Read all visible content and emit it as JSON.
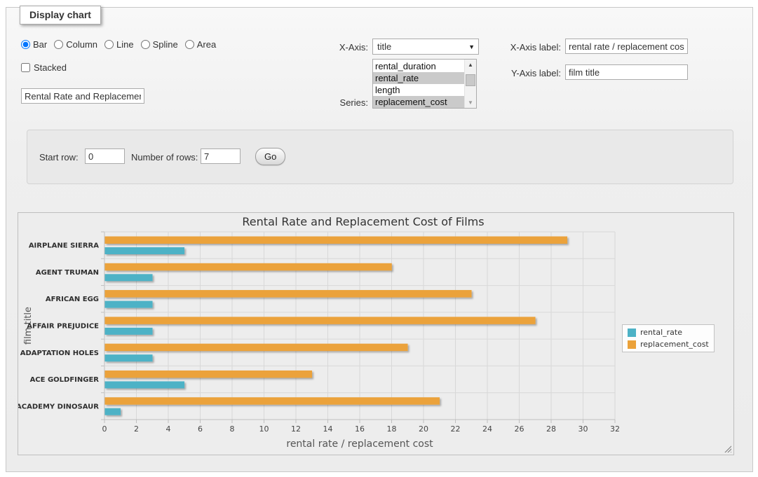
{
  "panel_title": "Display chart",
  "icons": {
    "select_arrow": "▼",
    "scroll_up_arrow": "▲",
    "scroll_down_arrow": "▼"
  },
  "form": {
    "chart_type": {
      "options": [
        {
          "label": "Bar",
          "selected": true
        },
        {
          "label": "Column",
          "selected": false
        },
        {
          "label": "Line",
          "selected": false
        },
        {
          "label": "Spline",
          "selected": false
        },
        {
          "label": "Area",
          "selected": false
        }
      ]
    },
    "stacked": {
      "label": "Stacked",
      "checked": false
    },
    "title_input": {
      "value": "Rental Rate and Replacement Cost of Films"
    },
    "x_axis": {
      "label": "X-Axis:",
      "selected": "title"
    },
    "series": {
      "label": "Series:",
      "options": [
        {
          "label": "rental_duration",
          "selected": false
        },
        {
          "label": "rental_rate",
          "selected": true
        },
        {
          "label": "length",
          "selected": false
        },
        {
          "label": "replacement_cost",
          "selected": true
        }
      ]
    },
    "x_axis_label": {
      "label": "X-Axis label:",
      "value": "rental rate / replacement cost"
    },
    "y_axis_label": {
      "label": "Y-Axis label:",
      "value": "film title"
    },
    "rows": {
      "start_label": "Start row:",
      "start_value": "0",
      "count_label": "Number of rows:",
      "count_value": "7",
      "go_label": "Go"
    }
  },
  "chart_data": {
    "type": "bar",
    "title": "Rental Rate and Replacement Cost of Films",
    "xlabel": "rental rate / replacement cost",
    "ylabel": "film title",
    "categories": [
      "AIRPLANE SIERRA",
      "AGENT TRUMAN",
      "AFRICAN EGG",
      "AFFAIR PREJUDICE",
      "ADAPTATION HOLES",
      "ACE GOLDFINGER",
      "ACADEMY DINOSAUR"
    ],
    "series": [
      {
        "name": "rental_rate",
        "color": "#4DB2C6",
        "values": [
          4.99,
          2.99,
          2.99,
          2.99,
          2.99,
          4.99,
          0.99
        ]
      },
      {
        "name": "replacement_cost",
        "color": "#EBA23A",
        "values": [
          28.99,
          17.99,
          22.99,
          26.99,
          18.99,
          12.99,
          20.99
        ]
      }
    ],
    "xlim": [
      0,
      32
    ],
    "xtick_step": 2,
    "grid": true,
    "legend_position": "right",
    "colors": {
      "background": "#EDEDED",
      "gridline": "#D8D8D8",
      "axis_line": "#BFBFBF",
      "title_text": "#333333",
      "axis_title_text": "#555555",
      "tick_text": "#444444",
      "category_text": "#2E2E2E"
    }
  }
}
